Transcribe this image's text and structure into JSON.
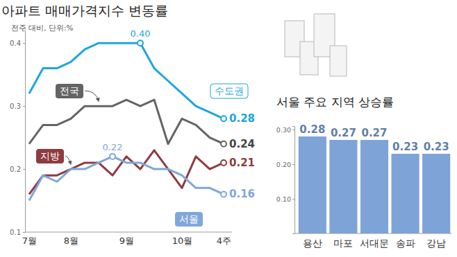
{
  "chart_data": [
    {
      "type": "line",
      "title": "아파트 매매가격지수 변동률",
      "subtitle": "전주 대비, 단위:%",
      "categories": [
        "7월",
        null,
        null,
        "8월",
        null,
        null,
        null,
        "9월",
        null,
        null,
        null,
        "10월",
        null,
        null,
        "4주"
      ],
      "series": [
        {
          "name": "수도권",
          "color": "#1ea5de",
          "values": [
            0.32,
            0.36,
            0.36,
            0.37,
            0.39,
            0.4,
            0.4,
            0.4,
            0.4,
            0.36,
            0.34,
            0.32,
            0.3,
            0.29,
            0.28
          ],
          "value_labels": [
            null,
            null,
            null,
            null,
            null,
            null,
            null,
            null,
            "0.40",
            null,
            null,
            null,
            null,
            null,
            "0.28"
          ]
        },
        {
          "name": "전국",
          "color": "#646464",
          "values": [
            0.24,
            0.27,
            0.27,
            0.28,
            0.3,
            0.3,
            0.3,
            0.31,
            0.3,
            0.31,
            0.24,
            0.28,
            0.27,
            0.25,
            0.24
          ],
          "value_labels": [
            null,
            null,
            null,
            null,
            null,
            null,
            null,
            null,
            null,
            null,
            null,
            null,
            null,
            null,
            "0.24"
          ]
        },
        {
          "name": "지방",
          "color": "#8e3b3f",
          "values": [
            0.16,
            0.19,
            0.19,
            0.2,
            0.21,
            0.21,
            0.19,
            0.22,
            0.2,
            0.23,
            0.2,
            0.17,
            0.22,
            0.2,
            0.21
          ],
          "value_labels": [
            null,
            null,
            null,
            null,
            null,
            null,
            null,
            null,
            null,
            null,
            null,
            null,
            null,
            null,
            "0.21"
          ]
        },
        {
          "name": "서울",
          "color": "#7fa7d9",
          "values": [
            0.15,
            0.19,
            0.18,
            0.2,
            0.2,
            0.21,
            0.22,
            0.21,
            0.21,
            0.2,
            0.2,
            0.19,
            0.17,
            0.17,
            0.16
          ],
          "value_labels": [
            null,
            null,
            null,
            null,
            null,
            null,
            "0.22",
            null,
            null,
            null,
            null,
            null,
            null,
            null,
            "0.16"
          ]
        }
      ],
      "ylim": [
        0.1,
        0.42
      ],
      "yticks": [
        0.1,
        0.2,
        0.3,
        0.4
      ],
      "grid": false
    },
    {
      "type": "bar",
      "title": "서울 주요 지역 상승률",
      "categories": [
        "용산",
        "마포",
        "서대문",
        "송파",
        "강남"
      ],
      "values": [
        0.28,
        0.27,
        0.27,
        0.23,
        0.23
      ],
      "color": "#7ea3d6",
      "ylim": [
        0,
        0.31
      ],
      "yticks": [
        {
          "value": 0.1,
          "label": "0.10"
        },
        {
          "value": 0.2,
          "label": "0.20"
        },
        {
          "value": 0.3,
          "label": "0.30"
        }
      ],
      "data_labels": true,
      "grid": false
    }
  ]
}
